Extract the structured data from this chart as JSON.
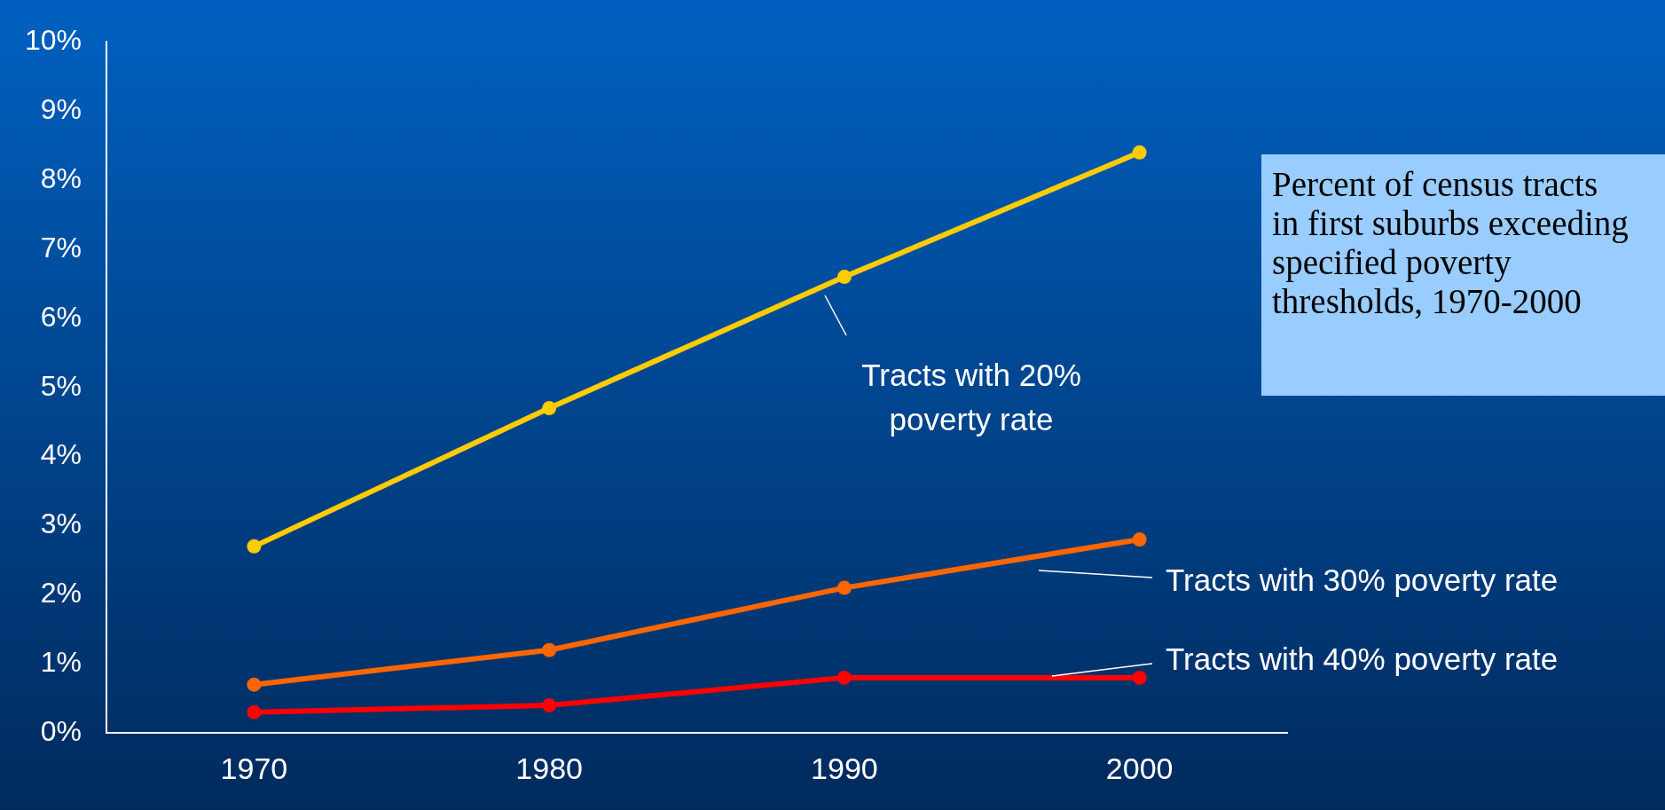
{
  "chart_data": {
    "type": "line",
    "title": "Percent of census tracts in first suburbs exceeding specified poverty thresholds, 1970-2000",
    "categories": [
      "1970",
      "1980",
      "1990",
      "2000"
    ],
    "series": [
      {
        "name": "Tracts with 20% poverty rate",
        "color": "#ffcc00",
        "values": [
          2.7,
          4.7,
          6.6,
          8.4
        ]
      },
      {
        "name": "Tracts with 30% poverty rate",
        "color": "#ff6600",
        "values": [
          0.7,
          1.2,
          2.1,
          2.8
        ]
      },
      {
        "name": "Tracts with 40% poverty rate",
        "color": "#ff0000",
        "values": [
          0.3,
          0.4,
          0.8,
          0.8
        ]
      }
    ],
    "ylim": [
      0,
      10
    ],
    "yticks": [
      {
        "value": 0,
        "label": "0%"
      },
      {
        "value": 1,
        "label": "1%"
      },
      {
        "value": 2,
        "label": "2%"
      },
      {
        "value": 3,
        "label": "3%"
      },
      {
        "value": 4,
        "label": "4%"
      },
      {
        "value": 5,
        "label": "5%"
      },
      {
        "value": 6,
        "label": "6%"
      },
      {
        "value": 7,
        "label": "7%"
      },
      {
        "value": 8,
        "label": "8%"
      },
      {
        "value": 9,
        "label": "9%"
      },
      {
        "value": 10,
        "label": "10%"
      }
    ],
    "grid": false,
    "legend": false,
    "marker": "circle",
    "line_style": "solid"
  }
}
